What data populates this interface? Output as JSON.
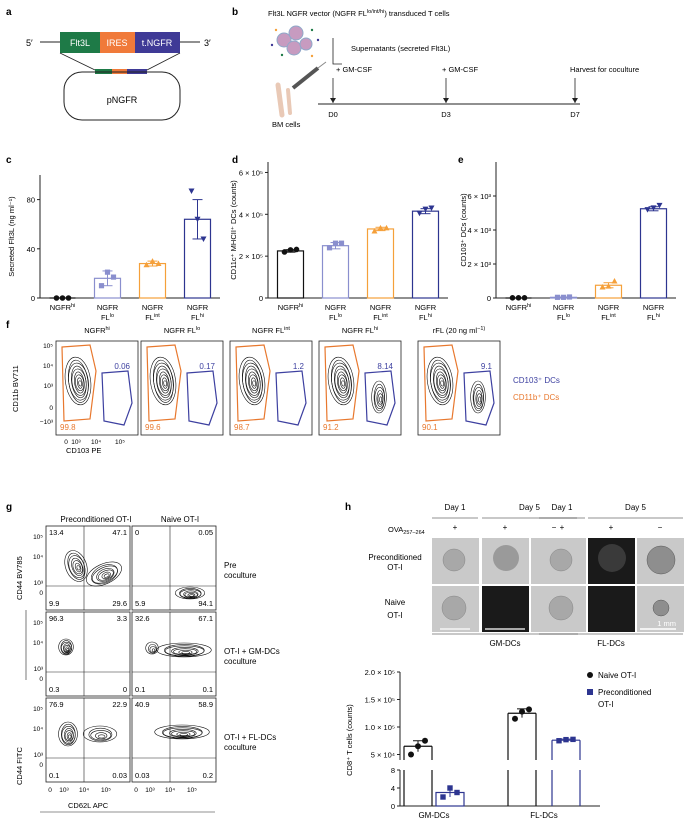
{
  "colors": {
    "black": "#111111",
    "lavender": "#8a8fce",
    "orange": "#f5a03a",
    "navy": "#2d3590",
    "contour_orange": "#e8782e",
    "contour_blue": "#3d40a0",
    "green": "#1e7a47",
    "ires": "#f07a3a",
    "tngfr": "#3f3a96"
  },
  "panels": {
    "a": {
      "letter": "a",
      "five": "5′",
      "three": "3′",
      "flt3l": "Flt3L",
      "ires": "IRES",
      "tngfr": "t.NGFR",
      "plasmid": "pNGFR"
    },
    "b": {
      "letter": "b",
      "title": "Flt3L NGFR vector (NGFR FL",
      "title_sup": "lo/int/hi",
      "title_end": ") transduced T cells",
      "supernatant": "Supernatants (secreted Flt3L)",
      "gmcsf1": "+ GM-CSF",
      "gmcsf2": "+ GM-CSF",
      "harvest": "Harvest for coculture",
      "bm": "BM cells",
      "d0": "D0",
      "d3": "D3",
      "d7": "D7"
    },
    "c": {
      "letter": "c"
    },
    "d": {
      "letter": "d"
    },
    "e": {
      "letter": "e"
    },
    "f": {
      "letter": "f",
      "titles": [
        "NGFR",
        "NGFR FL",
        "NGFR FL",
        "NGFR FL",
        "rFL (20 ng ml"
      ],
      "title_sups": [
        "hi",
        "lo",
        "int",
        "hi",
        ""
      ],
      "title_ends": [
        "",
        "",
        "",
        "",
        "−1)"
      ],
      "blue_vals": [
        "0.06",
        "0.17",
        "1.2",
        "8.14",
        "9.1"
      ],
      "orange_vals": [
        "99.8",
        "99.6",
        "98.7",
        "91.2",
        "90.1"
      ],
      "ylabel": "CD11b BV711",
      "xlabel": "CD103 PE",
      "legend_blue": "CD103⁺ DCs",
      "legend_orange": "CD11b⁺ DCs",
      "yticks": [
        "10⁵",
        "10⁴",
        "10³",
        "0",
        "−10³"
      ],
      "xticks": [
        "0",
        "10³",
        "10⁴",
        "10⁵"
      ]
    },
    "g": {
      "letter": "g",
      "col1": "Preconditioned OT-I",
      "col2": "Naive OT-I",
      "row_labels": [
        "Pre coculture",
        "OT-I + GM-DCs coculture",
        "OT-I + FL-DCs coculture"
      ],
      "row_lines": [
        [
          "Pre",
          "coculture"
        ],
        [
          "OT-I + GM-DCs",
          "coculture"
        ],
        [
          "OT-I + FL-DCs",
          "coculture"
        ]
      ],
      "quads": [
        [
          [
            "13.4",
            "47.1",
            "9.9",
            "29.6"
          ],
          [
            "0",
            "0.05",
            "5.9",
            "94.1"
          ]
        ],
        [
          [
            "96.3",
            "3.3",
            "0.3",
            "0"
          ],
          [
            "32.6",
            "67.1",
            "0.1",
            "0.1"
          ]
        ],
        [
          [
            "76.9",
            "22.9",
            "0.1",
            "0.03"
          ],
          [
            "40.9",
            "58.9",
            "0.03",
            "0.2"
          ]
        ]
      ],
      "ylabel_top": "CD44 BV785",
      "ylabel_bottom": "CD44 FITC",
      "xlabel": "CD62L APC",
      "xticks": [
        "0",
        "10³",
        "10⁴",
        "10⁵"
      ],
      "yticks": [
        "10⁵",
        "10⁴",
        "10³",
        "0"
      ]
    },
    "h": {
      "letter": "h",
      "days": [
        "Day 1",
        "Day 5",
        "Day 1",
        "Day 5"
      ],
      "ova": "OVA",
      "ova_sub": "257–264",
      "signs": [
        "+",
        "+",
        "−",
        "+",
        "+",
        "−"
      ],
      "row1": [
        "Preconditioned",
        "OT-I"
      ],
      "row2": [
        "Naive",
        "OT-I"
      ],
      "groups": [
        "GM-DCs",
        "FL-DCs"
      ],
      "scale": "1 mm",
      "legend_naive": "Naive OT-I",
      "legend_pre": [
        "Preconditioned",
        "OT-I"
      ],
      "ylabel": "CD8⁺ T cells (counts)"
    }
  },
  "chart_data": [
    {
      "type": "bar",
      "panel": "c",
      "ylabel": "Secreted Flt3L (ng ml⁻¹)",
      "yticks": [
        "0",
        "40",
        "80"
      ],
      "ylim": [
        0,
        100
      ],
      "categories": [
        [
          "NGFR",
          "hi",
          ""
        ],
        [
          "NGFR",
          "FL",
          "lo"
        ],
        [
          "NGFR",
          "FL",
          "int"
        ],
        [
          "NGFR",
          "FL",
          "hi"
        ]
      ],
      "values": [
        0,
        16,
        28,
        64
      ],
      "errors": [
        0,
        6,
        2,
        16
      ],
      "points": [
        [
          0,
          0,
          0
        ],
        [
          10,
          21,
          17
        ],
        [
          27,
          30,
          28
        ],
        [
          87,
          64,
          48
        ]
      ],
      "colors": [
        "#111111",
        "#8a8fce",
        "#f5a03a",
        "#2d3590"
      ]
    },
    {
      "type": "bar",
      "panel": "d",
      "ylabel": "CD11c⁺ MHCII⁺ DCs (counts)",
      "yticks": [
        "0",
        "2 × 10⁵",
        "4 × 10⁵",
        "6 × 10⁵"
      ],
      "ylim": [
        0,
        650000
      ],
      "categories": [
        [
          "NGFR",
          "hi",
          ""
        ],
        [
          "NGFR",
          "FL",
          "lo"
        ],
        [
          "NGFR",
          "FL",
          "int"
        ],
        [
          "NGFR",
          "FL",
          "hi"
        ]
      ],
      "values": [
        225000,
        250000,
        330000,
        415000
      ],
      "errors": [
        6000,
        15000,
        8000,
        12000
      ],
      "points": [
        [
          220000,
          230000,
          232000
        ],
        [
          240000,
          262000,
          262000
        ],
        [
          320000,
          335000,
          335000
        ],
        [
          405000,
          425000,
          430000
        ]
      ],
      "colors": [
        "#111111",
        "#8a8fce",
        "#f5a03a",
        "#2d3590"
      ]
    },
    {
      "type": "bar",
      "panel": "e",
      "ylabel": "CD103⁺ DCs (counts)",
      "yticks": [
        "0",
        "2 × 10³",
        "4 × 10³",
        "6 × 10³"
      ],
      "ylim": [
        0,
        8000
      ],
      "categories": [
        [
          "NGFR",
          "hi",
          ""
        ],
        [
          "NGFR",
          "FL",
          "lo"
        ],
        [
          "NGFR",
          "FL",
          "int"
        ],
        [
          "NGFR",
          "FL",
          "hi"
        ]
      ],
      "values": [
        0,
        40,
        750,
        5250
      ],
      "errors": [
        0,
        20,
        150,
        120
      ],
      "points": [
        [
          10,
          10,
          10
        ],
        [
          40,
          40,
          60
        ],
        [
          650,
          700,
          1000
        ],
        [
          5200,
          5300,
          5450
        ]
      ],
      "colors": [
        "#111111",
        "#8a8fce",
        "#f5a03a",
        "#2d3590"
      ]
    },
    {
      "type": "bar",
      "panel": "h",
      "ylabel": "CD8⁺ T cells (counts)",
      "yticks_upper": [
        "5 × 10⁴",
        "1.0 × 10⁵",
        "1.5 × 10⁵",
        "2.0 × 10⁵"
      ],
      "yticks_lower": [
        "0",
        "4",
        "8"
      ],
      "categories": [
        "GM-DCs",
        "FL-DCs"
      ],
      "series": [
        {
          "name": "Naive OT-I",
          "values": [
            65000,
            125000
          ],
          "errors": [
            10000,
            8000
          ],
          "points": [
            [
              50000,
              65000,
              75000
            ],
            [
              115000,
              128000,
              132000
            ]
          ],
          "color": "#111111"
        },
        {
          "name": "Preconditioned OT-I",
          "values": [
            3,
            76000
          ],
          "errors": [
            1,
            2000
          ],
          "points": [
            [
              2,
              4,
              3
            ],
            [
              75000,
              77000,
              77500
            ]
          ],
          "color": "#2d3590"
        }
      ]
    }
  ]
}
